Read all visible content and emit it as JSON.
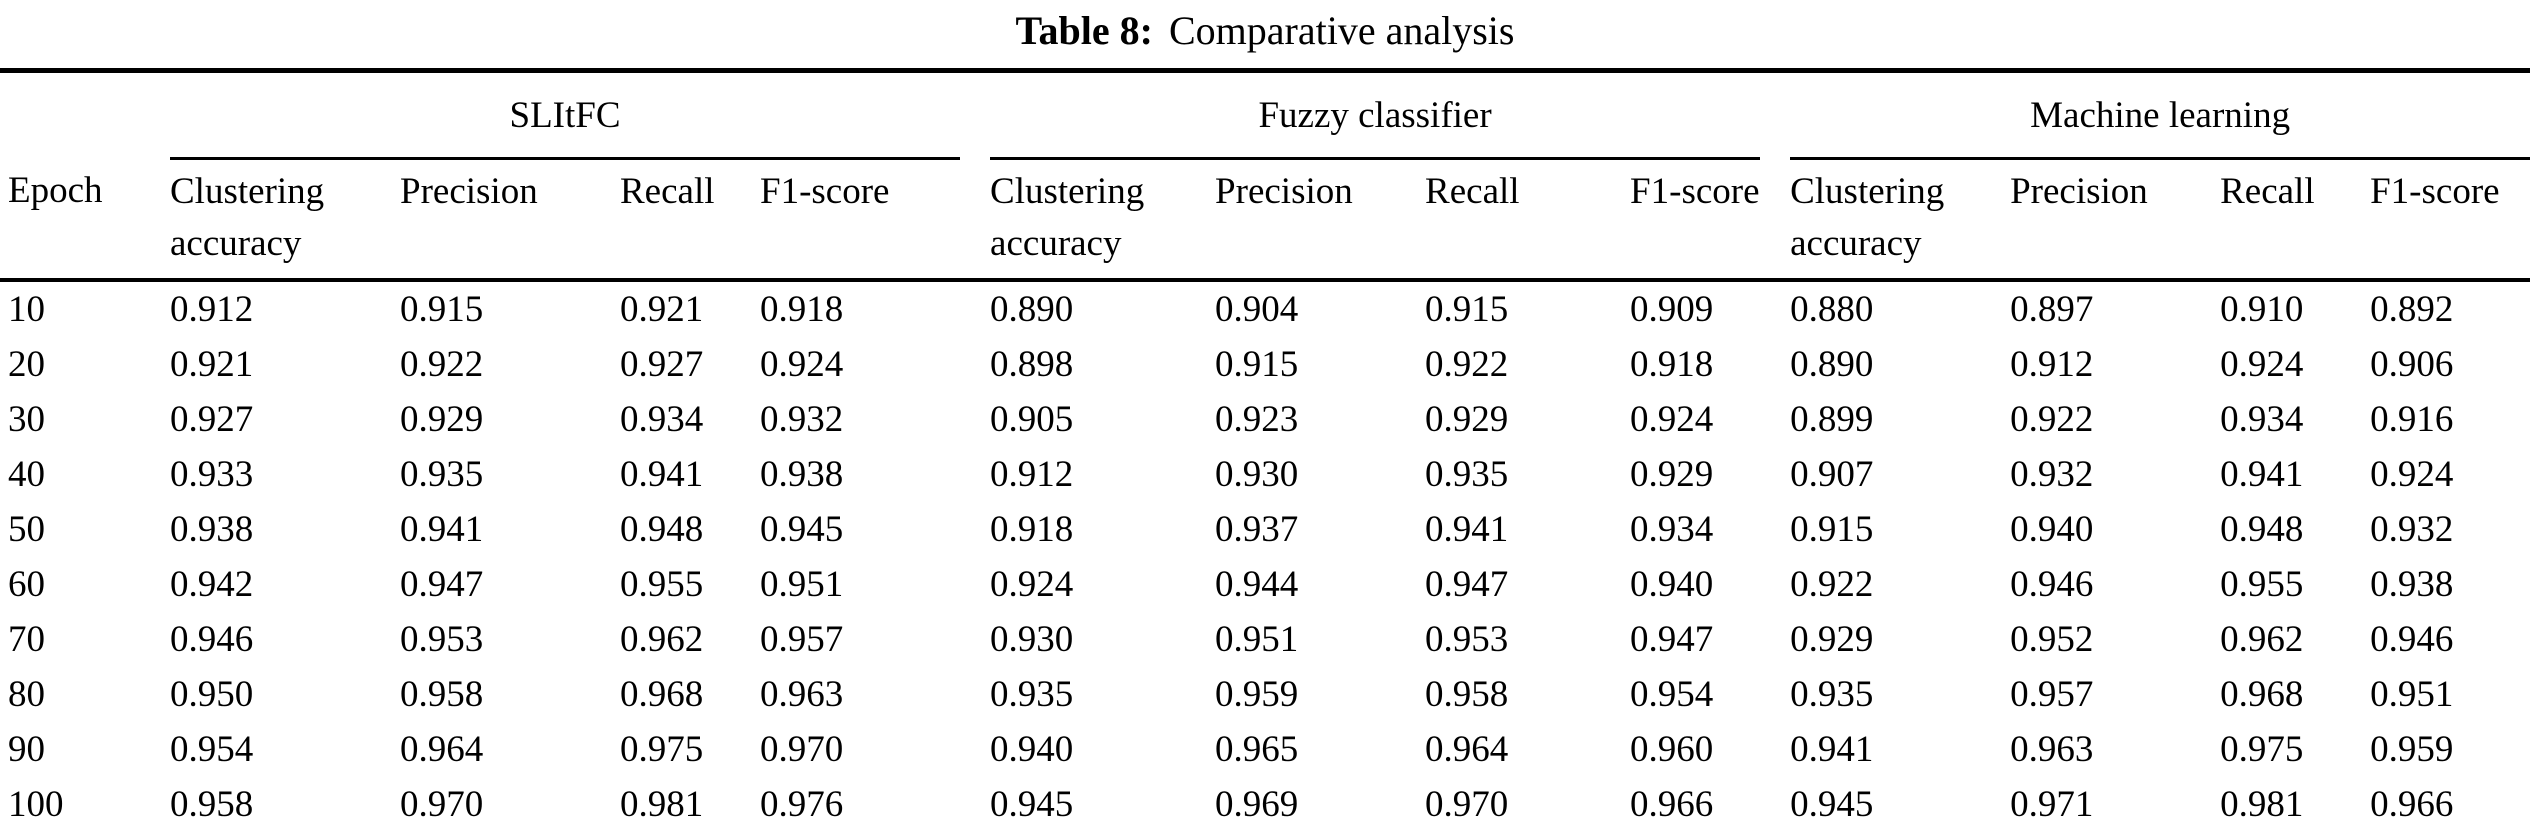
{
  "caption": {
    "label": "Table 8:",
    "text": "Comparative analysis"
  },
  "table": {
    "epoch_header": "Epoch",
    "groups": [
      {
        "name": "SLItFC"
      },
      {
        "name": "Fuzzy classifier"
      },
      {
        "name": "Machine learning"
      }
    ],
    "sub_headers": [
      "Clustering accuracy",
      "Precision",
      "Recall",
      "F1-score"
    ],
    "rows": [
      {
        "epoch": "10",
        "values": [
          [
            "0.912",
            "0.915",
            "0.921",
            "0.918"
          ],
          [
            "0.890",
            "0.904",
            "0.915",
            "0.909"
          ],
          [
            "0.880",
            "0.897",
            "0.910",
            "0.892"
          ]
        ]
      },
      {
        "epoch": "20",
        "values": [
          [
            "0.921",
            "0.922",
            "0.927",
            "0.924"
          ],
          [
            "0.898",
            "0.915",
            "0.922",
            "0.918"
          ],
          [
            "0.890",
            "0.912",
            "0.924",
            "0.906"
          ]
        ]
      },
      {
        "epoch": "30",
        "values": [
          [
            "0.927",
            "0.929",
            "0.934",
            "0.932"
          ],
          [
            "0.905",
            "0.923",
            "0.929",
            "0.924"
          ],
          [
            "0.899",
            "0.922",
            "0.934",
            "0.916"
          ]
        ]
      },
      {
        "epoch": "40",
        "values": [
          [
            "0.933",
            "0.935",
            "0.941",
            "0.938"
          ],
          [
            "0.912",
            "0.930",
            "0.935",
            "0.929"
          ],
          [
            "0.907",
            "0.932",
            "0.941",
            "0.924"
          ]
        ]
      },
      {
        "epoch": "50",
        "values": [
          [
            "0.938",
            "0.941",
            "0.948",
            "0.945"
          ],
          [
            "0.918",
            "0.937",
            "0.941",
            "0.934"
          ],
          [
            "0.915",
            "0.940",
            "0.948",
            "0.932"
          ]
        ]
      },
      {
        "epoch": "60",
        "values": [
          [
            "0.942",
            "0.947",
            "0.955",
            "0.951"
          ],
          [
            "0.924",
            "0.944",
            "0.947",
            "0.940"
          ],
          [
            "0.922",
            "0.946",
            "0.955",
            "0.938"
          ]
        ]
      },
      {
        "epoch": "70",
        "values": [
          [
            "0.946",
            "0.953",
            "0.962",
            "0.957"
          ],
          [
            "0.930",
            "0.951",
            "0.953",
            "0.947"
          ],
          [
            "0.929",
            "0.952",
            "0.962",
            "0.946"
          ]
        ]
      },
      {
        "epoch": "80",
        "values": [
          [
            "0.950",
            "0.958",
            "0.968",
            "0.963"
          ],
          [
            "0.935",
            "0.959",
            "0.958",
            "0.954"
          ],
          [
            "0.935",
            "0.957",
            "0.968",
            "0.951"
          ]
        ]
      },
      {
        "epoch": "90",
        "values": [
          [
            "0.954",
            "0.964",
            "0.975",
            "0.970"
          ],
          [
            "0.940",
            "0.965",
            "0.964",
            "0.960"
          ],
          [
            "0.941",
            "0.963",
            "0.975",
            "0.959"
          ]
        ]
      },
      {
        "epoch": "100",
        "values": [
          [
            "0.958",
            "0.970",
            "0.981",
            "0.976"
          ],
          [
            "0.945",
            "0.969",
            "0.970",
            "0.966"
          ],
          [
            "0.945",
            "0.971",
            "0.981",
            "0.966"
          ]
        ]
      }
    ]
  },
  "colors": {
    "text": "#000000",
    "rule": "#000000",
    "background": "#ffffff"
  }
}
